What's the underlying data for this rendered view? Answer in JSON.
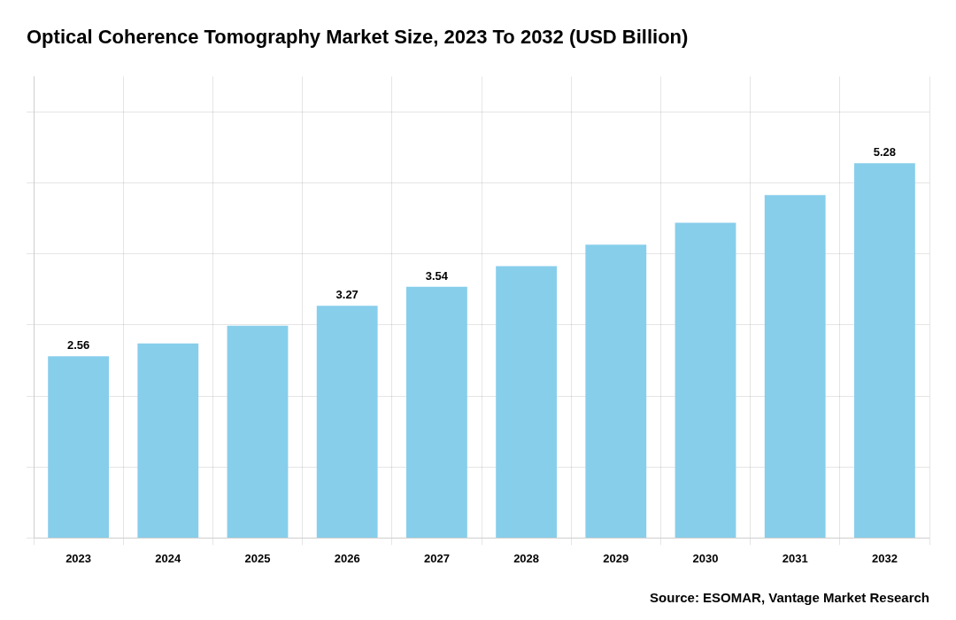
{
  "chart_data": {
    "type": "bar",
    "title": "Optical Coherence Tomography Market Size, 2023 To 2032 (USD Billion)",
    "annotation": "Source: ESOMAR, Vantage Market Research",
    "categories": [
      "2023",
      "2024",
      "2025",
      "2026",
      "2027",
      "2028",
      "2029",
      "2030",
      "2031",
      "2032"
    ],
    "values": [
      2.56,
      2.74,
      2.99,
      3.27,
      3.54,
      3.83,
      4.13,
      4.44,
      4.83,
      5.28
    ],
    "value_labels": [
      "2.56",
      null,
      null,
      "3.27",
      "3.54",
      null,
      null,
      null,
      null,
      "5.28"
    ],
    "data_labels": true,
    "color": "#87CEEB",
    "ylim": [
      0,
      6.5
    ],
    "yticks": [
      0,
      1,
      2,
      3,
      4,
      5,
      6
    ],
    "grid": true,
    "tick_labels": "x"
  }
}
